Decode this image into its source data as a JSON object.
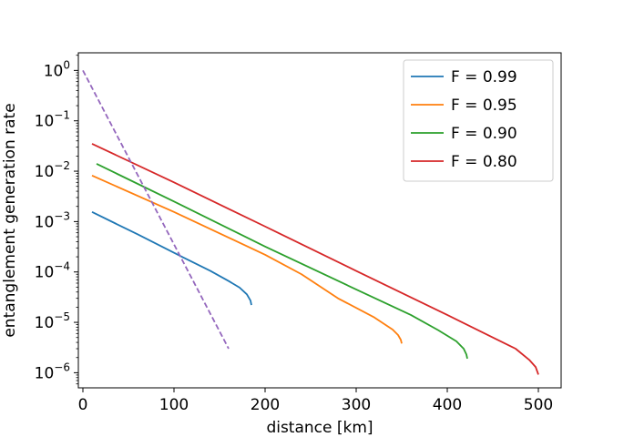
{
  "chart_data": {
    "type": "line",
    "title": "",
    "xlabel": "distance [km]",
    "ylabel": "entanglement generation rate",
    "xlim": [
      -5,
      525
    ],
    "ylim_log10": [
      -6.3,
      0.35
    ],
    "y_scale": "log",
    "grid": false,
    "legend_position": "top-right",
    "x_ticks": [
      0,
      100,
      200,
      300,
      400,
      500
    ],
    "x_tick_labels": [
      "0",
      "100",
      "200",
      "300",
      "400",
      "500"
    ],
    "y_ticks_log10": [
      0,
      -1,
      -2,
      -3,
      -4,
      -5,
      -6
    ],
    "y_tick_labels": [
      {
        "base": "10",
        "exp": "0"
      },
      {
        "base": "10",
        "exp": "−1"
      },
      {
        "base": "10",
        "exp": "−2"
      },
      {
        "base": "10",
        "exp": "−3"
      },
      {
        "base": "10",
        "exp": "−4"
      },
      {
        "base": "10",
        "exp": "−5"
      },
      {
        "base": "10",
        "exp": "−6"
      }
    ],
    "series": [
      {
        "name": "F = 0.99",
        "color": "#1f77b4",
        "dashed": false,
        "in_legend": true,
        "x": [
          10,
          60,
          110,
          140,
          160,
          172,
          180,
          184,
          185
        ],
        "y": [
          0.00155,
          0.00056,
          0.000195,
          0.000105,
          6.6e-05,
          4.9e-05,
          3.6e-05,
          2.7e-05,
          2.2e-05
        ]
      },
      {
        "name": "F = 0.95",
        "color": "#ff7f0e",
        "dashed": false,
        "in_legend": true,
        "x": [
          10,
          100,
          200,
          240,
          280,
          320,
          340,
          346,
          349,
          350
        ],
        "y": [
          0.0082,
          0.00155,
          0.00022,
          9e-05,
          3e-05,
          1.25e-05,
          7.2e-06,
          5.6e-06,
          4.5e-06,
          3.8e-06
        ]
      },
      {
        "name": "F = 0.90",
        "color": "#2ca02c",
        "dashed": false,
        "in_legend": true,
        "x": [
          15,
          100,
          200,
          300,
          360,
          390,
          410,
          418,
          421,
          422
        ],
        "y": [
          0.014,
          0.0025,
          0.00032,
          4.5e-05,
          1.4e-05,
          7e-06,
          4.2e-06,
          3e-06,
          2.3e-06,
          1.9e-06
        ]
      },
      {
        "name": "F = 0.80",
        "color": "#d62728",
        "dashed": false,
        "in_legend": true,
        "x": [
          10,
          100,
          200,
          300,
          400,
          450,
          475,
          490,
          497,
          500
        ],
        "y": [
          0.035,
          0.006,
          0.0008,
          0.000105,
          1.4e-05,
          5e-06,
          3e-06,
          1.8e-06,
          1.3e-06,
          9.2e-07
        ]
      },
      {
        "name": "",
        "color": "#9467bd",
        "dashed": true,
        "in_legend": false,
        "x": [
          0,
          160
        ],
        "y": [
          1.0,
          3e-06
        ]
      }
    ]
  }
}
